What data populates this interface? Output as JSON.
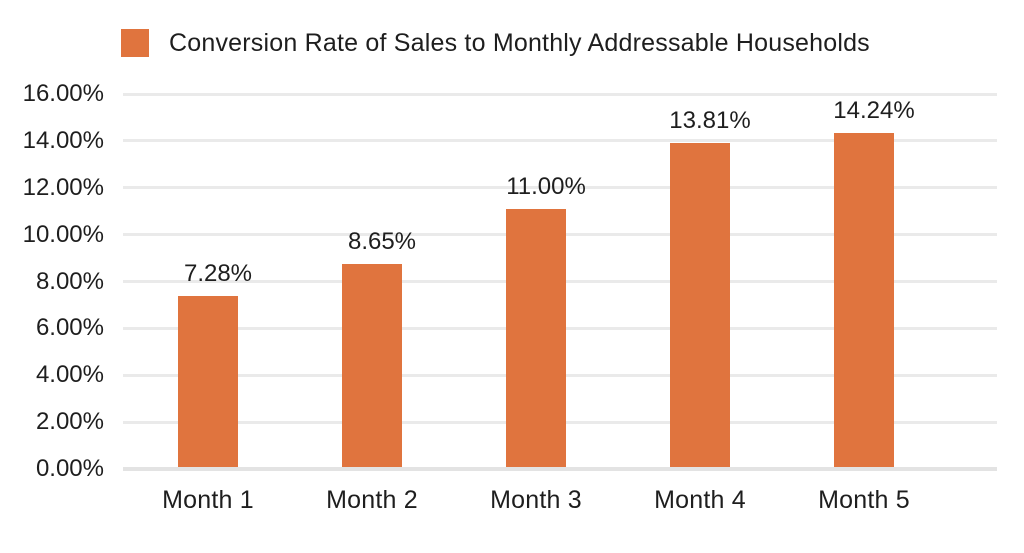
{
  "chart_data": {
    "type": "bar",
    "title": "Conversion Rate of Sales to Monthly Addressable Households",
    "categories": [
      "Month 1",
      "Month 2",
      "Month 3",
      "Month 4",
      "Month 5"
    ],
    "values": [
      7.28,
      8.65,
      11.0,
      13.81,
      14.24
    ],
    "bar_labels": [
      "7.28%",
      "8.65%",
      "11.00%",
      "13.81%",
      "14.24%"
    ],
    "y_tick_labels": [
      "0.00%",
      "2.00%",
      "4.00%",
      "6.00%",
      "8.00%",
      "10.00%",
      "12.00%",
      "14.00%",
      "16.00%"
    ],
    "ylim": [
      0,
      16
    ],
    "y_step": 2,
    "xlabel": "",
    "ylabel": "",
    "grid": "horizontal",
    "legend_position": "top-left",
    "colors": {
      "bar": "#E0743E",
      "gridline": "#EAEAEA",
      "baseline": "#E3E3E3",
      "text": "#1E1E1E",
      "background": "#FFFFFF"
    }
  }
}
